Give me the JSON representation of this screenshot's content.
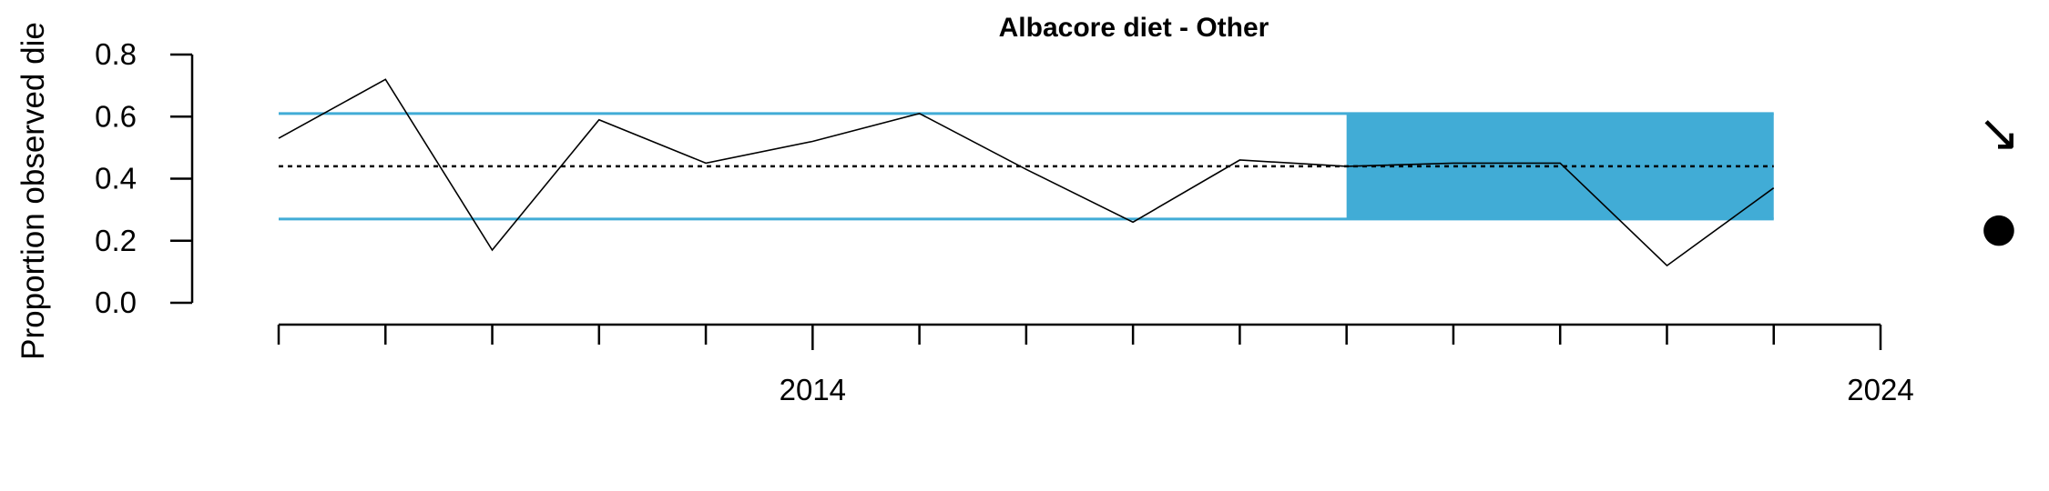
{
  "chart_data": {
    "type": "line",
    "title": "Albacore diet - Other",
    "ylabel": "Proportion observed die",
    "xlabel": "",
    "ylim": [
      0.0,
      0.8
    ],
    "yticks": [
      0.0,
      0.2,
      0.4,
      0.6,
      0.8
    ],
    "ytick_labels": [
      "0.0",
      "0.2",
      "0.4",
      "0.6",
      "0.8"
    ],
    "xlim": [
      2008.8,
      2024
    ],
    "xticks_minor": [
      2009,
      2010,
      2011,
      2012,
      2013,
      2014,
      2015,
      2016,
      2017,
      2018,
      2019,
      2020,
      2021,
      2022,
      2023,
      2024
    ],
    "xtick_labels": [
      {
        "x": 2014,
        "label": "2014"
      },
      {
        "x": 2024,
        "label": "2024"
      }
    ],
    "x": [
      2009,
      2010,
      2011,
      2012,
      2013,
      2014,
      2015,
      2016,
      2017,
      2018,
      2019,
      2020,
      2021,
      2022,
      2023
    ],
    "series": [
      {
        "values": [
          0.53,
          0.72,
          0.17,
          0.59,
          0.45,
          0.52,
          0.61,
          0.43,
          0.26,
          0.46,
          0.44,
          0.45,
          0.45,
          0.12,
          0.37
        ]
      }
    ],
    "mean": 0.44,
    "upper_sd": 0.61,
    "lower_sd": 0.27,
    "shaded_period": [
      2019,
      2023
    ],
    "colors": {
      "band": "#41acd6",
      "line": "#000000",
      "axis": "#000000"
    },
    "trend_symbol": "↘",
    "mean_symbol": "●"
  }
}
